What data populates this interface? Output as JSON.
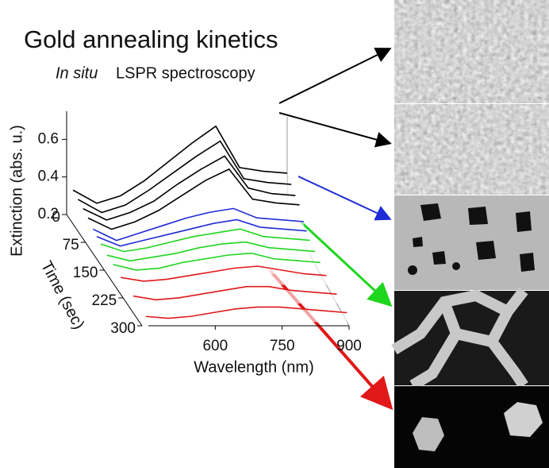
{
  "chart_data": {
    "type": "waterfall",
    "title": "Gold annealing kinetics",
    "subtitle": [
      "In situ",
      "LSPR spectroscopy"
    ],
    "y_label": "Extinction (abs. u.)",
    "time_label": "Time (sec)",
    "x_label": "Wavelength (nm)",
    "x": [
      450,
      500,
      550,
      600,
      650,
      700,
      750,
      800,
      850,
      900
    ],
    "xlim": [
      450,
      900
    ],
    "xticks": [
      600,
      750,
      900
    ],
    "ylim": [
      0.2,
      0.72
    ],
    "yticks": [
      0.2,
      0.4,
      0.6
    ],
    "tlim": [
      0,
      300
    ],
    "tticks": [
      0,
      75,
      150,
      225,
      300
    ],
    "series": [
      {
        "time": 0,
        "color": "#000000",
        "values": [
          0.33,
          0.26,
          0.3,
          0.38,
          0.48,
          0.58,
          0.67,
          0.45,
          0.43,
          0.42
        ]
      },
      {
        "time": 20,
        "color": "#000000",
        "values": [
          0.32,
          0.25,
          0.29,
          0.37,
          0.46,
          0.55,
          0.63,
          0.43,
          0.41,
          0.4
        ]
      },
      {
        "time": 40,
        "color": "#000000",
        "values": [
          0.31,
          0.25,
          0.29,
          0.35,
          0.44,
          0.52,
          0.59,
          0.42,
          0.39,
          0.38
        ]
      },
      {
        "time": 60,
        "color": "#000000",
        "values": [
          0.3,
          0.24,
          0.28,
          0.34,
          0.42,
          0.5,
          0.56,
          0.4,
          0.38,
          0.37
        ]
      },
      {
        "time": 80,
        "color": "#1f2bd6",
        "values": [
          0.28,
          0.22,
          0.26,
          0.3,
          0.34,
          0.37,
          0.39,
          0.34,
          0.33,
          0.32
        ]
      },
      {
        "time": 95,
        "color": "#1f2bd6",
        "values": [
          0.27,
          0.22,
          0.25,
          0.28,
          0.31,
          0.34,
          0.36,
          0.32,
          0.31,
          0.3
        ]
      },
      {
        "time": 110,
        "color": "#1ed61e",
        "values": [
          0.26,
          0.22,
          0.24,
          0.27,
          0.3,
          0.32,
          0.34,
          0.3,
          0.29,
          0.28
        ]
      },
      {
        "time": 135,
        "color": "#1ed61e",
        "values": [
          0.25,
          0.22,
          0.24,
          0.26,
          0.29,
          0.31,
          0.32,
          0.29,
          0.28,
          0.27
        ]
      },
      {
        "time": 160,
        "color": "#1ed61e",
        "values": [
          0.25,
          0.22,
          0.23,
          0.26,
          0.28,
          0.3,
          0.31,
          0.28,
          0.27,
          0.26
        ]
      },
      {
        "time": 190,
        "color": "#e01818",
        "values": [
          0.24,
          0.22,
          0.23,
          0.25,
          0.27,
          0.29,
          0.3,
          0.28,
          0.26,
          0.25
        ]
      },
      {
        "time": 240,
        "color": "#e01818",
        "values": [
          0.24,
          0.22,
          0.23,
          0.25,
          0.27,
          0.29,
          0.29,
          0.27,
          0.26,
          0.25
        ]
      },
      {
        "time": 290,
        "color": "#e01818",
        "values": [
          0.23,
          0.22,
          0.23,
          0.25,
          0.27,
          0.28,
          0.28,
          0.27,
          0.26,
          0.25
        ]
      }
    ]
  }
}
